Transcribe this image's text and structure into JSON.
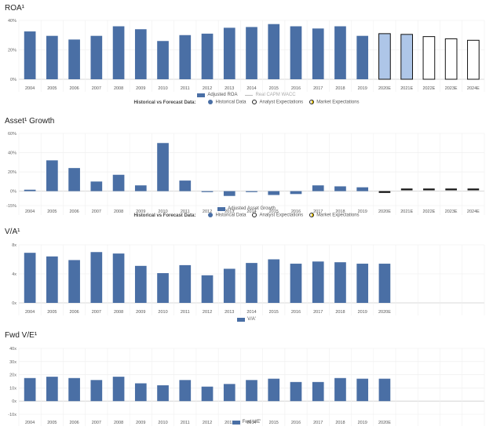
{
  "historical_forecast": {
    "title": "Historical vs Forecast Data:",
    "historical": "Historical Data",
    "analyst": "Analyst Expectations",
    "market": "Market Expectations"
  },
  "chart_data": [
    {
      "id": "roa",
      "type": "bar",
      "title": "ROA¹",
      "categories": [
        "2004",
        "2005",
        "2006",
        "2007",
        "2008",
        "2009",
        "2010",
        "2011",
        "2012",
        "2013",
        "2014",
        "2015",
        "2016",
        "2017",
        "2018",
        "2019",
        "2020E",
        "2021E",
        "2022E",
        "2023E",
        "2024E"
      ],
      "series": [
        {
          "name": "Adjusted ROA",
          "values": [
            32.5,
            29.5,
            27,
            29.5,
            36,
            34,
            26,
            30,
            31,
            35,
            35.5,
            37.5,
            36,
            34.5,
            36,
            29.5,
            31,
            30.5,
            29,
            27.5,
            26.5
          ]
        }
      ],
      "bar_styles": [
        "hist",
        "hist",
        "hist",
        "hist",
        "hist",
        "hist",
        "hist",
        "hist",
        "hist",
        "hist",
        "hist",
        "hist",
        "hist",
        "hist",
        "hist",
        "hist",
        "analyst",
        "analyst",
        "market",
        "market",
        "market"
      ],
      "yticks": [
        "0%",
        "20%",
        "40%"
      ],
      "ylim": [
        0,
        40
      ],
      "legend": [
        "Adjusted ROA",
        "Real CAPM WACC"
      ],
      "colors": {
        "bar": "#4a6fa5",
        "analyst_fill": "#aec6e8",
        "market_fill": "#ffffff"
      }
    },
    {
      "id": "asset-growth",
      "type": "bar",
      "title": "Asset¹ Growth",
      "categories": [
        "2004",
        "2005",
        "2006",
        "2007",
        "2008",
        "2009",
        "2010",
        "2011",
        "2012",
        "2013",
        "2014",
        "2015",
        "2016",
        "2017",
        "2018",
        "2019",
        "2020E",
        "2021E",
        "2022E",
        "2023E",
        "2024E"
      ],
      "series": [
        {
          "name": "Adjusted Asset Growth",
          "values": [
            1.5,
            32,
            24,
            10,
            17,
            6,
            50,
            11,
            -1,
            -5,
            -1,
            -4,
            -3,
            6,
            5,
            4,
            -1.5,
            0,
            0,
            0,
            0
          ]
        }
      ],
      "bar_styles": [
        "hist",
        "hist",
        "hist",
        "hist",
        "hist",
        "hist",
        "hist",
        "hist",
        "hist",
        "hist",
        "hist",
        "hist",
        "hist",
        "hist",
        "hist",
        "hist",
        "forecast",
        "forecast",
        "forecast",
        "forecast",
        "forecast"
      ],
      "yticks": [
        "-15%",
        "0%",
        "20%",
        "40%",
        "60%"
      ],
      "ytick_values": [
        -15,
        0,
        20,
        40,
        60
      ],
      "ylim": [
        -15,
        60
      ],
      "legend": [
        "Adjusted Asset Growth"
      ],
      "colors": {
        "bar": "#4a6fa5",
        "forecast": "#111111"
      }
    },
    {
      "id": "va",
      "type": "bar",
      "title": "V/A¹",
      "categories": [
        "2004",
        "2005",
        "2006",
        "2007",
        "2008",
        "2009",
        "2010",
        "2011",
        "2012",
        "2013",
        "2014",
        "2015",
        "2016",
        "2017",
        "2018",
        "2019",
        "2020E",
        "",
        "",
        "",
        ""
      ],
      "series": [
        {
          "name": "V/A'",
          "values": [
            6.9,
            6.4,
            5.9,
            7,
            6.8,
            5.1,
            4.1,
            5.2,
            3.8,
            4.7,
            5.5,
            6,
            5.4,
            5.7,
            5.6,
            5.4,
            5.4,
            null,
            null,
            null,
            null
          ]
        }
      ],
      "yticks": [
        "0x",
        "4x",
        "8x"
      ],
      "ylim": [
        0,
        8
      ],
      "legend": [
        "V/A'"
      ],
      "colors": {
        "bar": "#4a6fa5"
      }
    },
    {
      "id": "fwd-ve",
      "type": "bar",
      "title": "Fwd V/E¹",
      "categories": [
        "2004",
        "2005",
        "2006",
        "2007",
        "2008",
        "2009",
        "2010",
        "2011",
        "2012",
        "2013",
        "2014",
        "2015",
        "2016",
        "2017",
        "2018",
        "2019",
        "2020E",
        "",
        "",
        "",
        ""
      ],
      "series": [
        {
          "name": "Fwd V/E'",
          "values": [
            17.5,
            18.5,
            17.5,
            16,
            18.5,
            13.5,
            12,
            16,
            11,
            13,
            16,
            17,
            14.5,
            14.5,
            17.5,
            17,
            17,
            null,
            null,
            null,
            null
          ]
        }
      ],
      "yticks": [
        "-10x",
        "0x",
        "10x",
        "20x",
        "30x",
        "40x"
      ],
      "ytick_values": [
        -10,
        0,
        10,
        20,
        30,
        40
      ],
      "ylim": [
        -10,
        40
      ],
      "legend": [
        "Fwd V/E'"
      ],
      "colors": {
        "bar": "#4a6fa5"
      }
    }
  ]
}
